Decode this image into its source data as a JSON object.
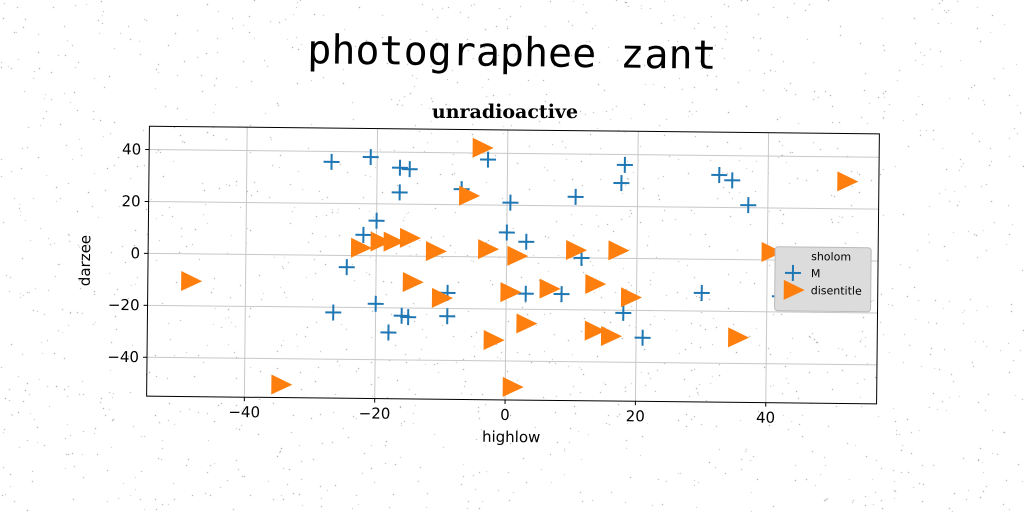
{
  "heading": "photographee zant",
  "chart_data": {
    "type": "scatter",
    "title": "unradioactive",
    "xlabel": "highlow",
    "ylabel": "darzee",
    "xlim": [
      -55,
      57
    ],
    "ylim": [
      -55,
      49
    ],
    "xticks": [
      -40,
      -20,
      0,
      20,
      40
    ],
    "yticks": [
      40,
      20,
      0,
      -20,
      -40
    ],
    "grid": true,
    "legend": {
      "title": "sholom",
      "position": "right"
    },
    "series": [
      {
        "name": "M",
        "marker": "plus",
        "color": "#1f77b4",
        "points": [
          [
            -27,
            36
          ],
          [
            -21,
            38
          ],
          [
            -16.5,
            34
          ],
          [
            -15,
            33.5
          ],
          [
            -16.5,
            24.5
          ],
          [
            -20,
            13.5
          ],
          [
            -22,
            8
          ],
          [
            -24.5,
            -4.5
          ],
          [
            -20,
            -18.5
          ],
          [
            -16,
            -23
          ],
          [
            -15,
            -23.5
          ],
          [
            -18,
            -29.5
          ],
          [
            -26.5,
            -22
          ],
          [
            -9,
            -14
          ],
          [
            -9,
            -23
          ],
          [
            -7,
            26
          ],
          [
            -3,
            37.5
          ],
          [
            0.5,
            21
          ],
          [
            3,
            6
          ],
          [
            0,
            9.5
          ],
          [
            3,
            -14
          ],
          [
            8.5,
            -14
          ],
          [
            10.5,
            23.5
          ],
          [
            11.5,
            0
          ],
          [
            17.5,
            29
          ],
          [
            18,
            36
          ],
          [
            18,
            -21
          ],
          [
            21,
            -30.5
          ],
          [
            30,
            -13
          ],
          [
            32.5,
            32.5
          ],
          [
            34.5,
            30.5
          ],
          [
            37,
            21
          ],
          [
            42,
            -14
          ]
        ]
      },
      {
        "name": "disentitle",
        "marker": "triangle-right",
        "color": "#ff7f0e",
        "points": [
          [
            -4,
            42
          ],
          [
            52,
            30.5
          ],
          [
            -6,
            23.5
          ],
          [
            -22.5,
            3
          ],
          [
            -19.5,
            5.5
          ],
          [
            -17.5,
            5.5
          ],
          [
            -15,
            7
          ],
          [
            -11,
            2
          ],
          [
            -3,
            3
          ],
          [
            1.5,
            0.5
          ],
          [
            10.5,
            3
          ],
          [
            17,
            3
          ],
          [
            40.5,
            3
          ],
          [
            -48.5,
            -10.5
          ],
          [
            -14.5,
            -10
          ],
          [
            -10,
            -16
          ],
          [
            0.5,
            -13.5
          ],
          [
            3,
            -25.5
          ],
          [
            6.5,
            -12
          ],
          [
            13.5,
            -10
          ],
          [
            19,
            -15
          ],
          [
            -2,
            -32
          ],
          [
            13.5,
            -28
          ],
          [
            16,
            -30
          ],
          [
            35.5,
            -30
          ],
          [
            -34.5,
            -50
          ],
          [
            1,
            -50
          ]
        ]
      }
    ]
  }
}
